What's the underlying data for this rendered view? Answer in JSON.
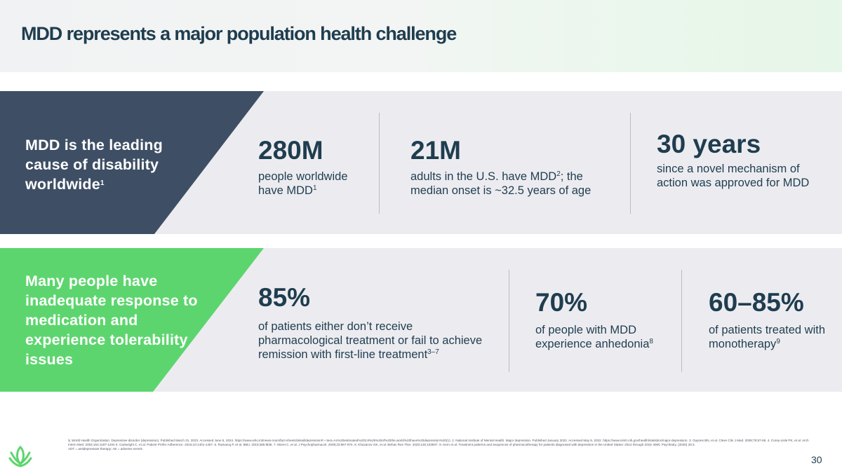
{
  "title": "MDD represents a major population health challenge",
  "row1": {
    "banner": {
      "text": "MDD is the leading cause of disability worldwide",
      "sup": "1"
    },
    "stats": [
      {
        "value": "280M",
        "desc": "people worldwide have MDD",
        "sup": "1"
      },
      {
        "value": "21M",
        "desc_a": "adults in the U.S. have MDD",
        "sup": "2",
        "desc_b": "; the median onset is ~32.5 years of age"
      },
      {
        "value": "30 years",
        "desc": "since a novel mechanism of action was approved for MDD"
      }
    ]
  },
  "row2": {
    "banner": {
      "text": "Many people have inadequate response to medication and experience tolerability issues"
    },
    "stats": [
      {
        "value": "85%",
        "desc": "of patients either don’t receive pharmacological treatment or fail to achieve remission with first-line treatment",
        "sup": "3–7"
      },
      {
        "value": "70%",
        "desc": "of people with MDD experience anhedonia",
        "sup": "8"
      },
      {
        "value": "60–85%",
        "desc": "of patients treated with monotherapy",
        "sup": "9"
      }
    ]
  },
  "footnotes": {
    "refs_label": "1.",
    "refs": "World Health Organization. Depressive disorder (depression). Published March 31, 2023. Accessed June 5, 2024. https://www.who.int/news-room/fact-sheets/detail/depression#:~:text=An%20estimated%203.8%25%20of%20the,world%20have%20depression%20(1). 2. National Institute of Mental Health. Major depression. Published January 2022. Accessed May 9, 2022. https://www.nimh.nih.gov/health/statistics/major-depression. 3. Gaynes BN, et al. Cleve Clin J Med. 2008;75:57-66. 4. Corey-Lisle PK, et al. Arch Intern Med. 2004;164:1197-1204 5. Cartwright C, et al. Patient Prefer Adherence. 2016;10:1401-1407. 6. Ramanuj P, et al. BMJ. 2019;365:l835. 7. Moret C, et al. J Psychopharmacol. 2009;23:967-974. 8. Khazanov GK, et al. Behav Res Ther. 2020;125:103507. 9. Kern et al. Treatment patterns and sequences of pharmacotherapy for patients diagnosed with depression in the United States: 2014 through 2019. BMC Psychiatry. (2020) 20:4.",
    "abbrev": "ADT = antidepressant therapy; AE = adverse events"
  },
  "page_number": "30",
  "colors": {
    "navy": "#3e4f65",
    "green": "#5dd56e",
    "text": "#1f3d4f",
    "band": "#ececf0"
  },
  "logo_icon": "leaf-circle-logo"
}
